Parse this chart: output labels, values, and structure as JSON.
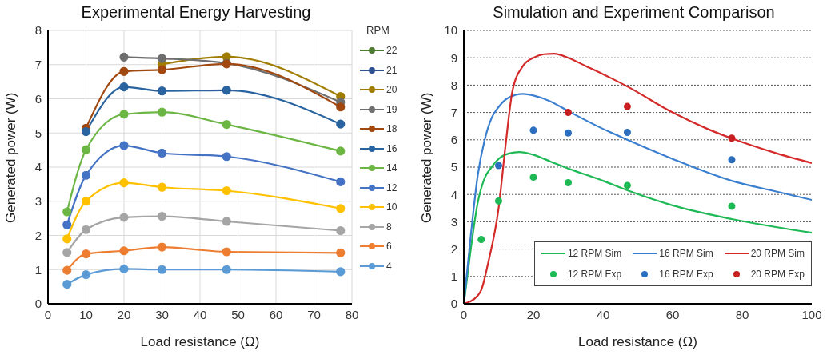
{
  "chart_data": [
    {
      "type": "line",
      "title": "Experimental Energy Harvesting",
      "xlabel": "Load resistance (Ω)",
      "ylabel": "Generated power (W)",
      "legend_title": "RPM",
      "legend": "right",
      "grid": true,
      "marker": "circle",
      "xlim": [
        0,
        80
      ],
      "xticks": [
        0,
        10,
        20,
        30,
        40,
        50,
        60,
        70,
        80
      ],
      "ylim": [
        0,
        8
      ],
      "yticks": [
        0,
        1,
        2,
        3,
        4,
        5,
        6,
        7,
        8
      ],
      "x": [
        5,
        10,
        20,
        30,
        47,
        77
      ],
      "series": [
        {
          "name": "22",
          "color": "#4e7a34",
          "values": [
            null,
            null,
            null,
            null,
            null,
            null
          ]
        },
        {
          "name": "21",
          "color": "#2f4f8f",
          "values": [
            null,
            null,
            null,
            null,
            null,
            null
          ]
        },
        {
          "name": "20",
          "color": "#a07d00",
          "values": [
            null,
            null,
            null,
            7.01,
            7.23,
            6.07
          ]
        },
        {
          "name": "19",
          "color": "#6e6e6e",
          "values": [
            null,
            null,
            7.22,
            7.18,
            7.04,
            5.9
          ]
        },
        {
          "name": "18",
          "color": "#a0480f",
          "values": [
            null,
            5.14,
            6.8,
            6.85,
            7.02,
            5.76
          ]
        },
        {
          "name": "16",
          "color": "#2a64a0",
          "values": [
            null,
            5.04,
            6.35,
            6.23,
            6.25,
            5.26
          ]
        },
        {
          "name": "14",
          "color": "#6cb644",
          "values": [
            2.69,
            4.51,
            5.55,
            5.61,
            5.25,
            4.47
          ]
        },
        {
          "name": "12",
          "color": "#4472c4",
          "values": [
            2.31,
            3.76,
            4.63,
            4.41,
            4.31,
            3.57
          ]
        },
        {
          "name": "10",
          "color": "#ffc000",
          "values": [
            1.9,
            3.0,
            3.54,
            3.41,
            3.31,
            2.79
          ]
        },
        {
          "name": "8",
          "color": "#a5a5a5",
          "values": [
            1.5,
            2.17,
            2.53,
            2.56,
            2.41,
            2.14
          ]
        },
        {
          "name": "6",
          "color": "#ed7d31",
          "values": [
            0.98,
            1.46,
            1.55,
            1.66,
            1.52,
            1.49
          ]
        },
        {
          "name": "4",
          "color": "#5b9bd5",
          "values": [
            0.57,
            0.85,
            1.02,
            1.0,
            1.0,
            0.94
          ]
        }
      ]
    },
    {
      "type": "line",
      "title": "Simulation and Experiment Comparison",
      "xlabel": "Load resistance (Ω)",
      "ylabel": "Generated power (W)",
      "legend": "bottom right",
      "grid": "y",
      "xlim": [
        0,
        100
      ],
      "xticks": [
        0,
        20,
        40,
        60,
        80,
        100
      ],
      "ylim": [
        0,
        10
      ],
      "yticks": [
        0,
        1,
        2,
        3,
        4,
        5,
        6,
        7,
        8,
        9,
        10
      ],
      "series": [
        {
          "name": "12 RPM Sim",
          "marker": "none",
          "color": "#1db954",
          "x": [
            0,
            2,
            4,
            6,
            8,
            10,
            13,
            16,
            20,
            25,
            30,
            40,
            47,
            60,
            77,
            90,
            100
          ],
          "values": [
            0,
            2.0,
            3.7,
            4.6,
            5.0,
            5.3,
            5.5,
            5.55,
            5.45,
            5.2,
            4.95,
            4.5,
            4.15,
            3.6,
            3.1,
            2.8,
            2.6
          ]
        },
        {
          "name": "16 RPM Sim",
          "marker": "none",
          "color": "#3a7fcf",
          "x": [
            0,
            2,
            4,
            6,
            8,
            10,
            13,
            17,
            20,
            25,
            30,
            40,
            47,
            60,
            77,
            90,
            100
          ],
          "values": [
            0,
            2.5,
            4.7,
            6.0,
            6.8,
            7.2,
            7.55,
            7.68,
            7.62,
            7.4,
            7.05,
            6.4,
            6.0,
            5.3,
            4.5,
            4.1,
            3.8
          ]
        },
        {
          "name": "20 RPM Sim",
          "marker": "none",
          "color": "#d42a2a",
          "x": [
            0,
            4,
            5,
            7,
            10,
            12,
            14,
            17,
            20,
            23,
            26,
            30,
            35,
            40,
            47,
            60,
            70,
            77,
            90,
            100
          ],
          "values": [
            0,
            0.3,
            0.5,
            1.5,
            3.5,
            5.8,
            7.8,
            8.7,
            9.0,
            9.13,
            9.15,
            9.0,
            8.7,
            8.4,
            7.95,
            7.0,
            6.4,
            6.05,
            5.5,
            5.15
          ]
        },
        {
          "name": "12 RPM Exp",
          "type": "scatter",
          "marker": "circle",
          "color": "#1db954",
          "x": [
            5,
            10,
            20,
            30,
            47,
            77
          ],
          "values": [
            2.35,
            3.76,
            4.63,
            4.43,
            4.33,
            3.57
          ]
        },
        {
          "name": "16 RPM Exp",
          "type": "scatter",
          "marker": "circle",
          "color": "#2a6fbf",
          "x": [
            10,
            20,
            30,
            47,
            77
          ],
          "values": [
            5.06,
            6.35,
            6.25,
            6.27,
            5.27
          ]
        },
        {
          "name": "20 RPM Exp",
          "type": "scatter",
          "marker": "circle",
          "color": "#c82020",
          "x": [
            30,
            47,
            77
          ],
          "values": [
            7.0,
            7.22,
            6.06
          ]
        }
      ]
    }
  ]
}
